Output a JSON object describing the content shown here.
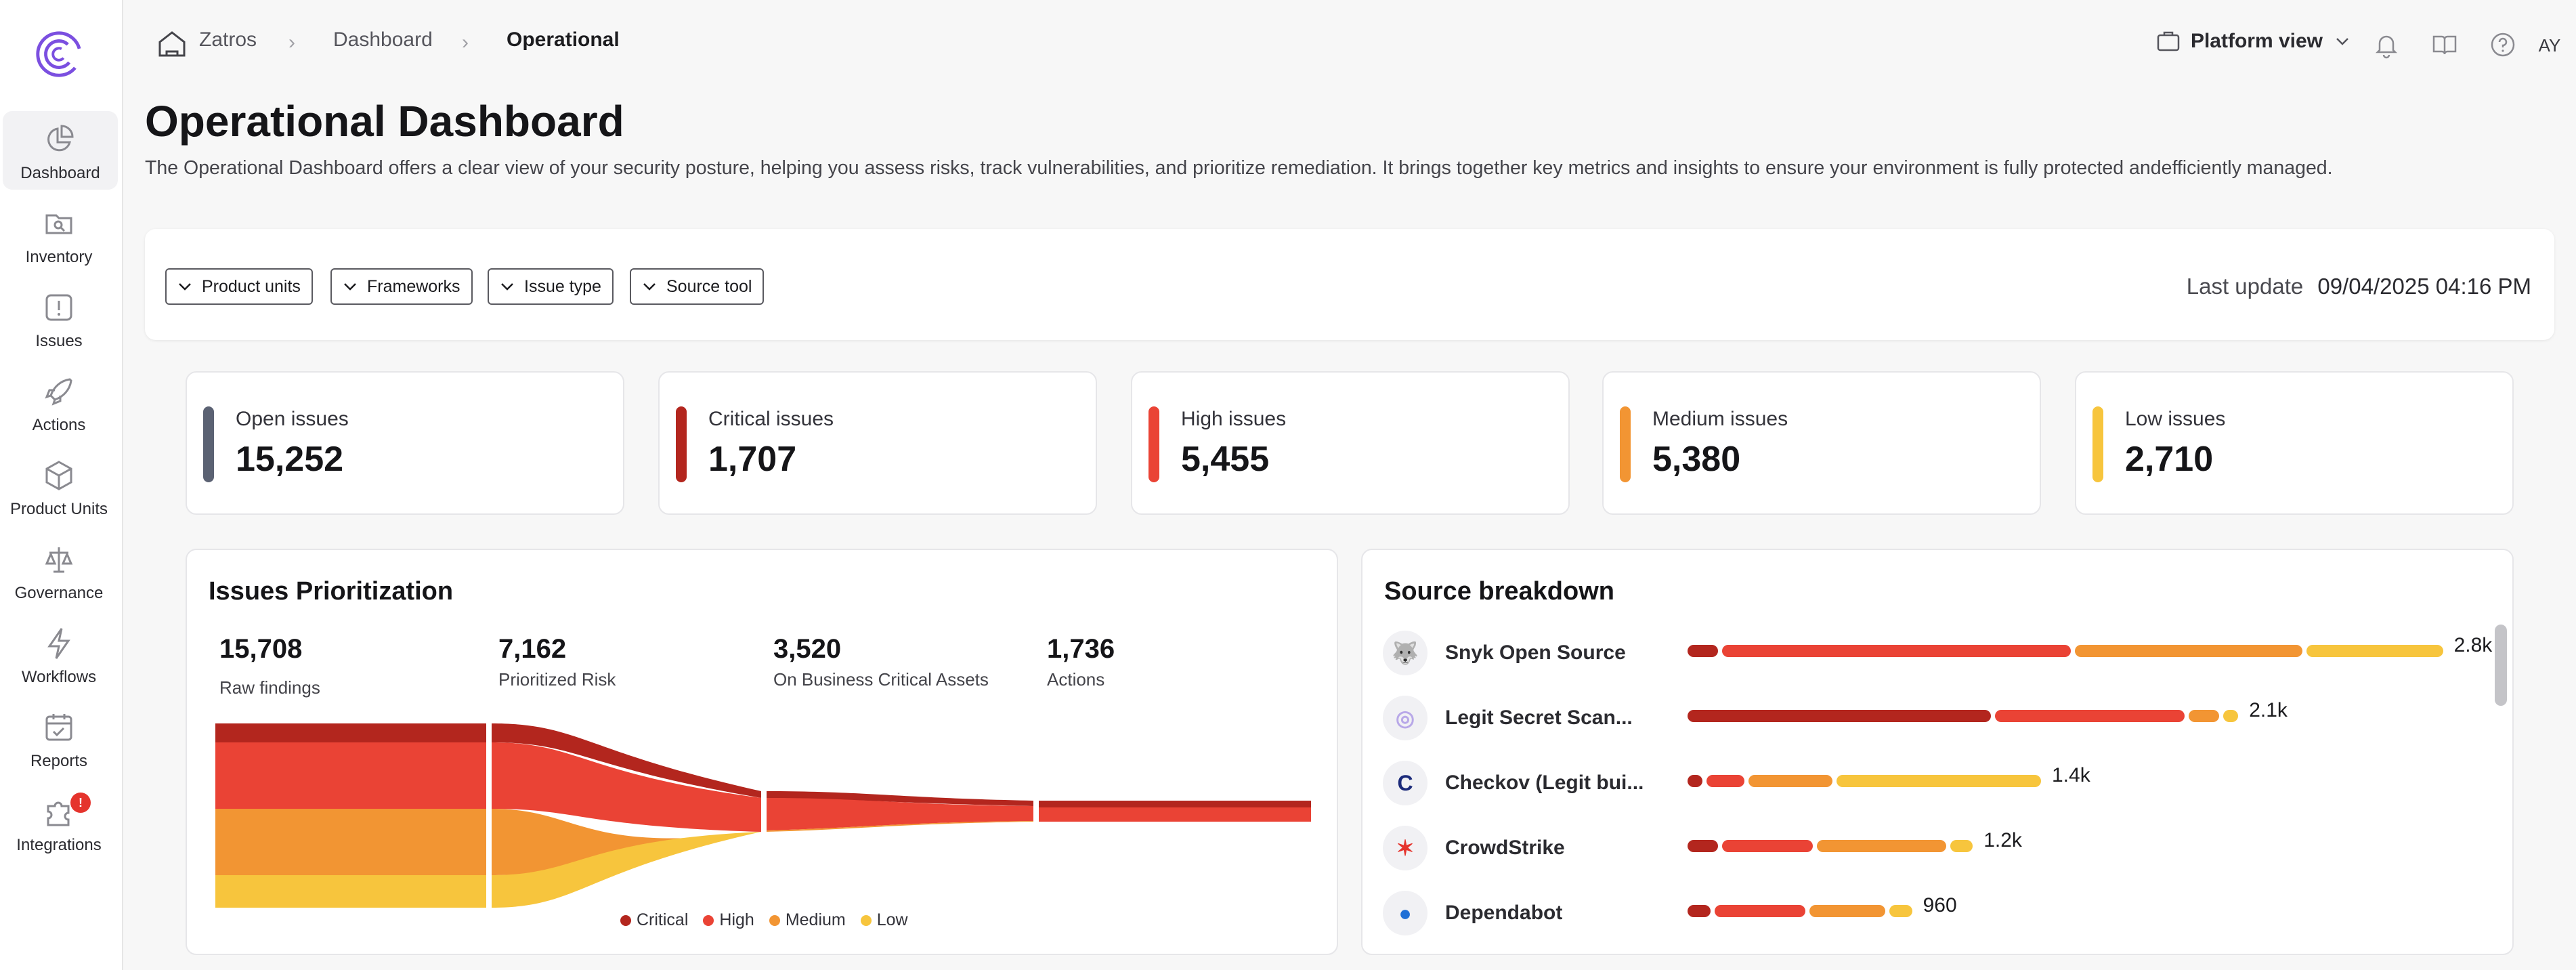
{
  "sidebar": {
    "items": [
      {
        "label": "Dashboard",
        "icon": "dashboard-icon"
      },
      {
        "label": "Inventory",
        "icon": "inventory-icon"
      },
      {
        "label": "Issues",
        "icon": "issues-icon"
      },
      {
        "label": "Actions",
        "icon": "rocket-icon"
      },
      {
        "label": "Product Units",
        "icon": "cube-icon"
      },
      {
        "label": "Governance",
        "icon": "scales-icon"
      },
      {
        "label": "Workflows",
        "icon": "bolt-icon"
      },
      {
        "label": "Reports",
        "icon": "calendar-icon"
      },
      {
        "label": "Integrations",
        "icon": "puzzle-icon",
        "badge": "!"
      }
    ]
  },
  "breadcrumb": {
    "home": "Zatros",
    "level1": "Dashboard",
    "current": "Operational"
  },
  "header": {
    "platform_view": "Platform view",
    "avatar": "AY"
  },
  "page": {
    "title": "Operational Dashboard",
    "description": "The Operational Dashboard offers a clear view of your security posture, helping you assess risks, track vulnerabilities, and prioritize remediation. It brings together key metrics and insights to ensure your environment is fully protected andefficiently managed."
  },
  "filters": {
    "items": [
      "Product units",
      "Frameworks",
      "Issue type",
      "Source tool"
    ],
    "last_update_label": "Last update",
    "last_update_value": "09/04/2025 04:16 PM"
  },
  "kpis": [
    {
      "label": "Open issues",
      "value": "15,252",
      "color": "#5b6273"
    },
    {
      "label": "Critical issues",
      "value": "1,707",
      "color": "#b3261e"
    },
    {
      "label": "High issues",
      "value": "5,455",
      "color": "#ea4335"
    },
    {
      "label": "Medium issues",
      "value": "5,380",
      "color": "#f29533"
    },
    {
      "label": "Low issues",
      "value": "2,710",
      "color": "#f7c53d"
    }
  ],
  "prioritization": {
    "title": "Issues Prioritization",
    "stages": [
      {
        "value": "15,708",
        "label": "Raw findings"
      },
      {
        "value": "7,162",
        "label": "Prioritized Risk"
      },
      {
        "value": "3,520",
        "label": "On Business Critical Assets"
      },
      {
        "value": "1,736",
        "label": "Actions"
      }
    ],
    "legend": [
      "Critical",
      "High",
      "Medium",
      "Low"
    ]
  },
  "colors": {
    "critical": "#b3261e",
    "high": "#ea4335",
    "medium": "#f29533",
    "low": "#f7c53d",
    "accent": "#7b4fe0"
  },
  "source_breakdown": {
    "title": "Source breakdown",
    "rows": [
      {
        "name": "Snyk Open Source",
        "total": "2.8k",
        "icon": "snyk-icon",
        "segments": [
          0.04,
          0.46,
          0.3,
          0.18
        ]
      },
      {
        "name": "Legit Secret Scan...",
        "total": "2.1k",
        "icon": "legit-icon",
        "segments": [
          0.4,
          0.25,
          0.04,
          0.02
        ]
      },
      {
        "name": "Checkov (Legit bui...",
        "total": "1.4k",
        "icon": "checkov-icon",
        "segments": [
          0.02,
          0.05,
          0.11,
          0.27
        ]
      },
      {
        "name": "CrowdStrike",
        "total": "1.2k",
        "icon": "crowdstrike-icon",
        "segments": [
          0.04,
          0.12,
          0.17,
          0.03
        ]
      },
      {
        "name": "Dependabot",
        "total": "960",
        "icon": "dependabot-icon",
        "segments": [
          0.03,
          0.12,
          0.1,
          0.03
        ]
      }
    ]
  }
}
